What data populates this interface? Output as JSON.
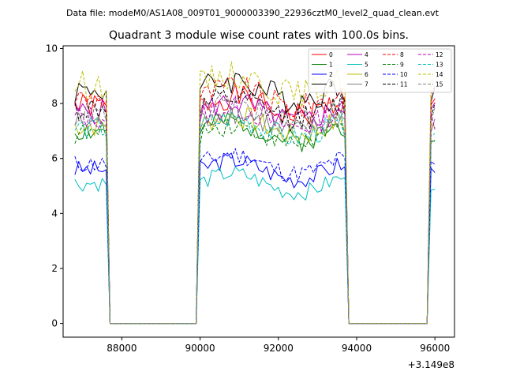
{
  "header": {
    "file_label": "Data file: modeM0/AS1A08_009T01_9000003390_22936cztM0_level2_quad_clean.evt"
  },
  "chart_data": {
    "type": "line",
    "title": "Quadrant 3 module wise count rates with 100.0s bins.",
    "xlabel": "",
    "ylabel": "",
    "x_offset_label": "+3.149e8",
    "xlim": [
      86500,
      96500
    ],
    "ylim": [
      -0.5,
      10.1
    ],
    "x_ticks": [
      88000,
      90000,
      92000,
      94000,
      96000
    ],
    "x_tick_labels": [
      "88000",
      "90000",
      "92000",
      "94000",
      "96000"
    ],
    "y_ticks": [
      0,
      2,
      4,
      6,
      8,
      10
    ],
    "y_tick_labels": [
      "0",
      "2",
      "4",
      "6",
      "8",
      "10"
    ],
    "grid": false,
    "legend_position": "top-right",
    "segments": [
      [
        86800,
        87600
      ],
      [
        89950,
        93700
      ],
      [
        95850,
        96050
      ]
    ],
    "series": [
      {
        "name": "0",
        "level": 7.9,
        "color": "#ff0000",
        "dash": "solid"
      },
      {
        "name": "1",
        "level": 7.0,
        "color": "#008000",
        "dash": "solid"
      },
      {
        "name": "2",
        "level": 5.6,
        "color": "#0000ff",
        "dash": "solid"
      },
      {
        "name": "3",
        "level": 8.5,
        "color": "#000000",
        "dash": "solid"
      },
      {
        "name": "4",
        "level": 7.7,
        "color": "#bf00bf",
        "dash": "solid"
      },
      {
        "name": "5",
        "level": 5.1,
        "color": "#00bfbf",
        "dash": "solid"
      },
      {
        "name": "6",
        "level": 7.2,
        "color": "#bfbf00",
        "dash": "solid"
      },
      {
        "name": "7",
        "level": 7.3,
        "color": "#808080",
        "dash": "solid"
      },
      {
        "name": "8",
        "level": 8.2,
        "color": "#ff0000",
        "dash": "dashed"
      },
      {
        "name": "9",
        "level": 6.9,
        "color": "#008000",
        "dash": "dashed"
      },
      {
        "name": "10",
        "level": 5.8,
        "color": "#0000ff",
        "dash": "dashed"
      },
      {
        "name": "11",
        "level": 7.8,
        "color": "#000000",
        "dash": "dashed"
      },
      {
        "name": "12",
        "level": 7.5,
        "color": "#bf00bf",
        "dash": "dashed"
      },
      {
        "name": "13",
        "level": 7.1,
        "color": "#00bfbf",
        "dash": "dashed"
      },
      {
        "name": "14",
        "level": 8.7,
        "color": "#bfbf00",
        "dash": "dashed"
      },
      {
        "name": "15",
        "level": 7.6,
        "color": "#808080",
        "dash": "dashed"
      }
    ]
  }
}
